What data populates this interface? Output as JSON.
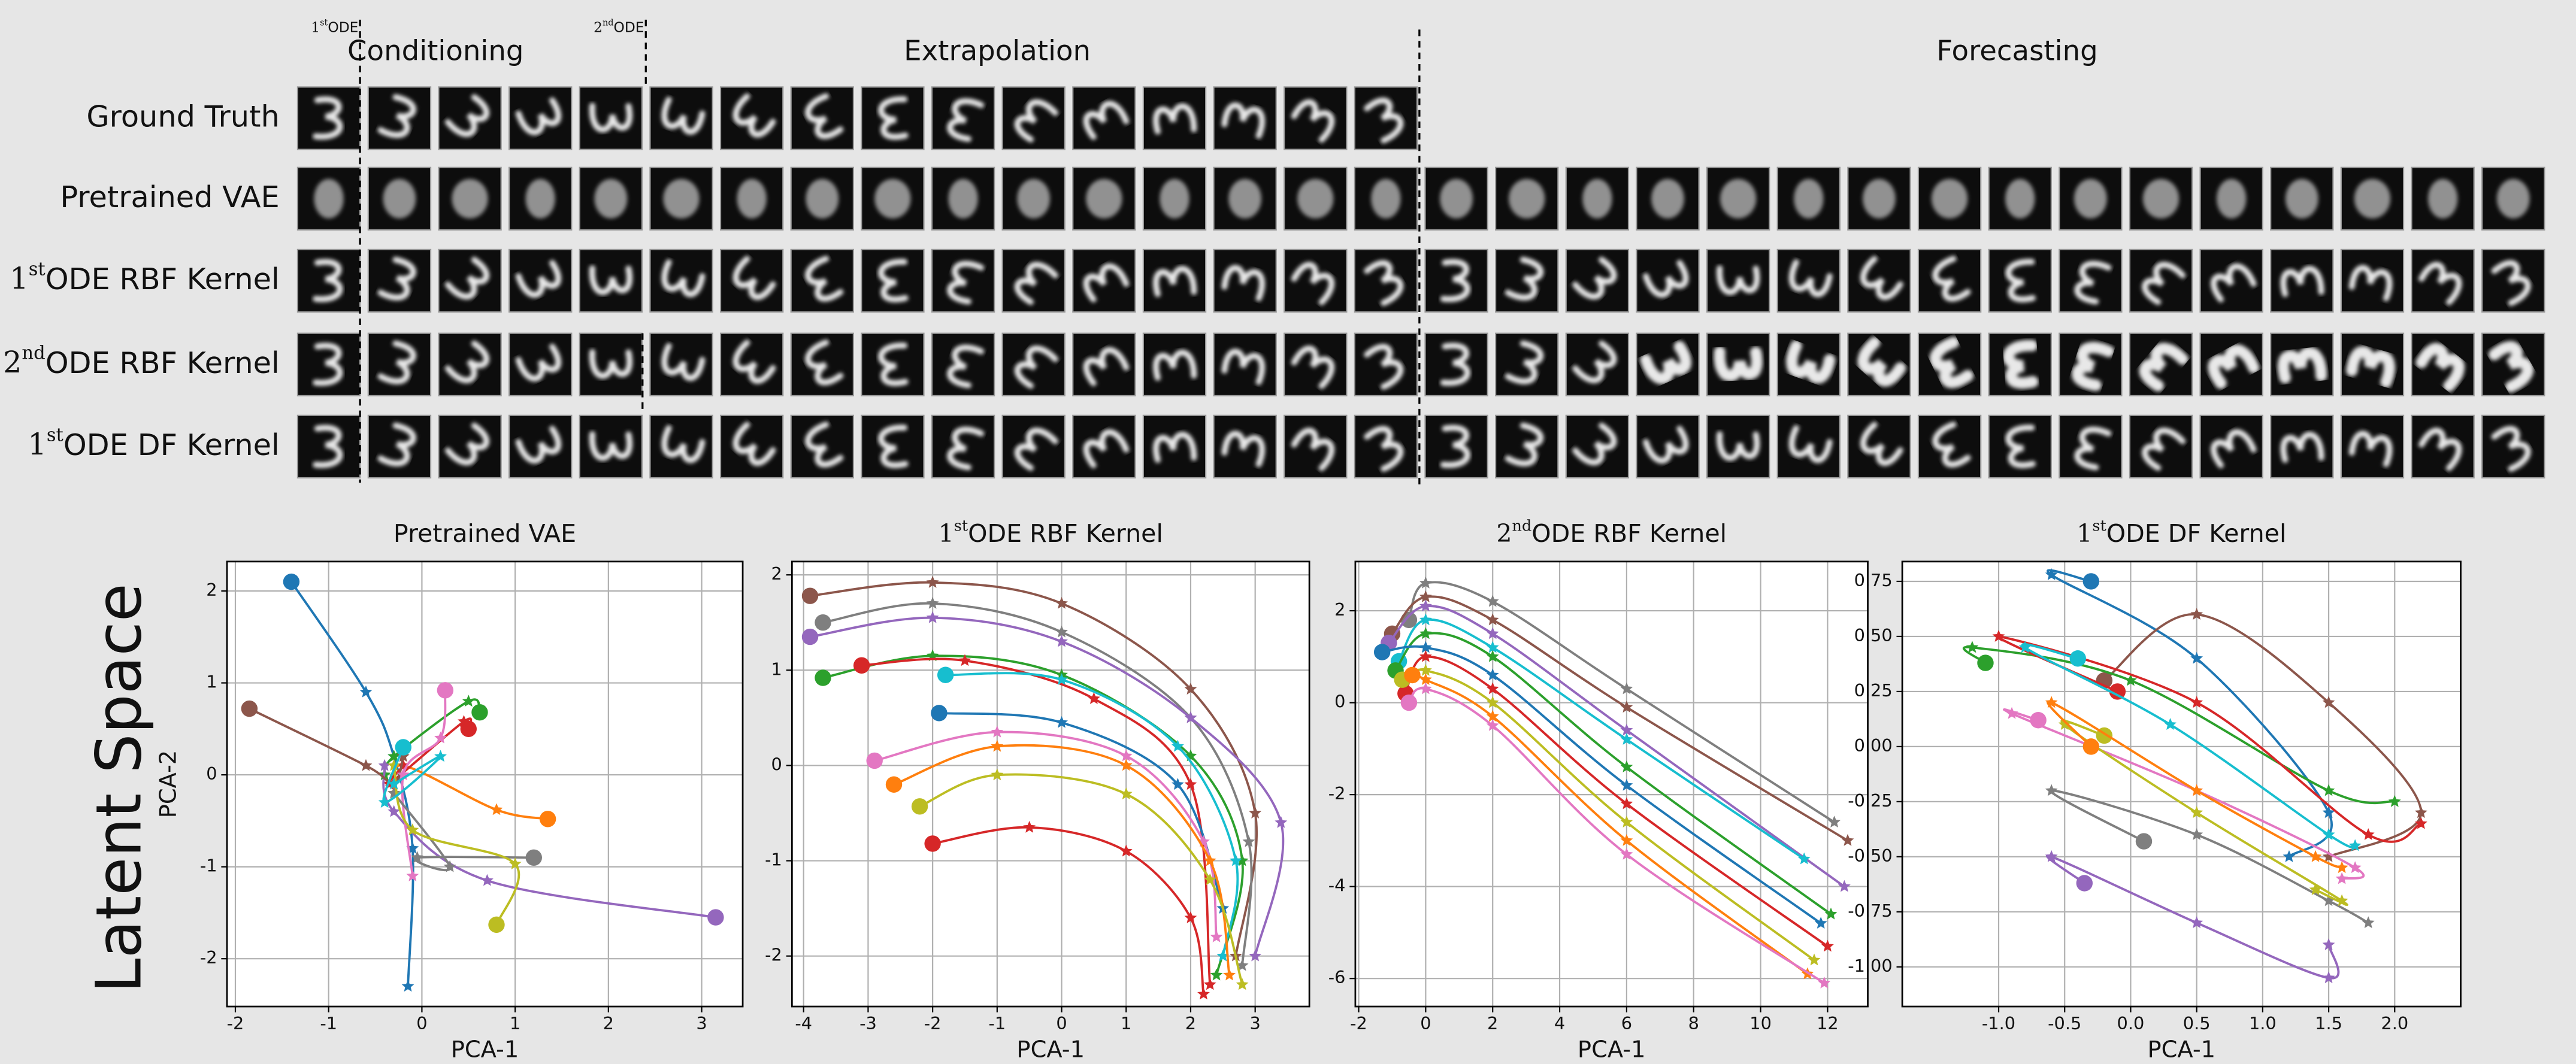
{
  "header": {
    "phases": [
      "Conditioning",
      "Extrapolation",
      "Forecasting"
    ],
    "markers": [
      {
        "base": "1",
        "sup": "st",
        "text": "ODE"
      },
      {
        "base": "2",
        "sup": "nd",
        "text": "ODE"
      }
    ]
  },
  "rows": [
    {
      "text": "Ground Truth"
    },
    {
      "text": "Pretrained VAE"
    },
    {
      "base": "1",
      "sup": "st",
      "text": "ODE RBF Kernel"
    },
    {
      "base": "2",
      "sup": "nd",
      "text": "ODE RBF Kernel"
    },
    {
      "base": "1",
      "sup": "st",
      "text": "ODE DF Kernel"
    }
  ],
  "side_label": "Latent Space",
  "chart_data": [
    {
      "type": "line",
      "title": {
        "text": "Pretrained VAE"
      },
      "xlabel": "PCA-1",
      "ylabel": "PCA-2",
      "grid": true,
      "xlim": [
        -2.09,
        3.44
      ],
      "ylim": [
        -2.52,
        2.32
      ],
      "xticks": [
        -2,
        -1,
        0,
        1,
        2,
        3
      ],
      "yticks": [
        -2,
        -1,
        0,
        1,
        2
      ],
      "series": [
        {
          "color": "#1f77b4",
          "x": [
            -1.4,
            -0.6,
            -0.3,
            -0.1,
            -0.15
          ],
          "values": [
            2.1,
            0.9,
            0.2,
            -0.8,
            -2.3
          ]
        },
        {
          "color": "#ff7f0e",
          "x": [
            1.35,
            0.8,
            -0.2,
            -0.3
          ],
          "values": [
            -0.48,
            -0.38,
            0.1,
            -0.2
          ]
        },
        {
          "color": "#2ca02c",
          "x": [
            0.62,
            0.5,
            -0.3,
            -0.4
          ],
          "values": [
            0.68,
            0.8,
            0.2,
            0.0
          ]
        },
        {
          "color": "#d62728",
          "x": [
            0.5,
            0.45,
            -0.35,
            -0.2
          ],
          "values": [
            0.5,
            0.58,
            -0.1,
            0.1
          ]
        },
        {
          "color": "#9467bd",
          "x": [
            3.15,
            0.7,
            -0.3,
            -0.4
          ],
          "values": [
            -1.55,
            -1.15,
            -0.4,
            0.1
          ]
        },
        {
          "color": "#8c564b",
          "x": [
            -1.85,
            -0.6,
            -0.3,
            -0.2
          ],
          "values": [
            0.72,
            0.1,
            -0.1,
            0.2
          ]
        },
        {
          "color": "#e377c2",
          "x": [
            0.25,
            0.2,
            -0.2,
            -0.1
          ],
          "values": [
            0.92,
            0.4,
            0.0,
            -1.1
          ]
        },
        {
          "color": "#7f7f7f",
          "x": [
            1.2,
            -0.05,
            0.3,
            -0.3
          ],
          "values": [
            -0.9,
            -0.9,
            -1.0,
            -0.2
          ]
        },
        {
          "color": "#bcbd22",
          "x": [
            0.8,
            1.0,
            -0.1,
            -0.3
          ],
          "values": [
            -1.63,
            -0.97,
            -0.6,
            0.1
          ]
        },
        {
          "color": "#17becf",
          "x": [
            -0.2,
            -0.4,
            0.2,
            -0.3
          ],
          "values": [
            0.3,
            -0.3,
            0.2,
            -0.1
          ]
        }
      ]
    },
    {
      "type": "line",
      "title": {
        "base": "1",
        "sup": "st",
        "text": "ODE RBF Kernel"
      },
      "xlabel": "PCA-1",
      "grid": true,
      "xlim": [
        -4.18,
        3.84
      ],
      "ylim": [
        -2.53,
        2.14
      ],
      "xticks": [
        -4,
        -3,
        -2,
        -1,
        0,
        1,
        2,
        3
      ],
      "yticks": [
        -2,
        -1,
        0,
        1,
        2
      ],
      "series": [
        {
          "color": "#8c564b",
          "x": [
            -3.9,
            -2,
            0,
            2,
            3,
            2.7
          ],
          "values": [
            1.78,
            1.92,
            1.7,
            0.8,
            -0.5,
            -2.0
          ]
        },
        {
          "color": "#7f7f7f",
          "x": [
            -3.7,
            -2,
            0,
            2,
            2.9,
            2.8
          ],
          "values": [
            1.5,
            1.7,
            1.4,
            0.5,
            -0.8,
            -2.1
          ]
        },
        {
          "color": "#9467bd",
          "x": [
            -3.9,
            -2,
            0,
            2,
            3.4,
            3
          ],
          "values": [
            1.35,
            1.55,
            1.3,
            0.5,
            -0.6,
            -2.0
          ]
        },
        {
          "color": "#2ca02c",
          "x": [
            -3.7,
            -2,
            0,
            2,
            2.8,
            2.4
          ],
          "values": [
            0.92,
            1.15,
            0.95,
            0.1,
            -1.0,
            -2.2
          ]
        },
        {
          "color": "#d62728",
          "x": [
            -3.1,
            -1.5,
            0.5,
            2,
            2.3
          ],
          "values": [
            1.05,
            1.1,
            0.7,
            -0.2,
            -2.3
          ]
        },
        {
          "color": "#17becf",
          "x": [
            -1.8,
            0,
            1.8,
            2.7,
            2.5
          ],
          "values": [
            0.95,
            0.9,
            0.2,
            -1.0,
            -2.0
          ]
        },
        {
          "color": "#1f77b4",
          "x": [
            -1.9,
            0,
            1.8,
            2.5
          ],
          "values": [
            0.55,
            0.45,
            -0.2,
            -1.5
          ]
        },
        {
          "color": "#e377c2",
          "x": [
            -2.9,
            -1,
            1,
            2.2,
            2.4
          ],
          "values": [
            0.05,
            0.35,
            0.1,
            -0.8,
            -1.8
          ]
        },
        {
          "color": "#ff7f0e",
          "x": [
            -2.6,
            -1,
            1,
            2.3,
            2.6
          ],
          "values": [
            -0.2,
            0.2,
            0.0,
            -1.0,
            -2.2
          ]
        },
        {
          "color": "#bcbd22",
          "x": [
            -2.2,
            -1,
            1,
            2.3,
            2.8
          ],
          "values": [
            -0.43,
            -0.1,
            -0.3,
            -1.2,
            -2.3
          ]
        },
        {
          "color": "#d62728",
          "x": [
            -2,
            -0.5,
            1,
            2,
            2.2
          ],
          "values": [
            -0.82,
            -0.65,
            -0.9,
            -1.6,
            -2.4
          ]
        }
      ]
    },
    {
      "type": "line",
      "title": {
        "base": "2",
        "sup": "nd",
        "text": "ODE RBF Kernel"
      },
      "xlabel": "PCA-1",
      "grid": true,
      "xlim": [
        -2.1,
        13.2
      ],
      "ylim": [
        -6.61,
        3.07
      ],
      "xticks": [
        -2,
        0,
        2,
        4,
        6,
        8,
        10,
        12
      ],
      "yticks": [
        -6,
        -4,
        -2,
        0,
        2
      ],
      "series": [
        {
          "color": "#7f7f7f",
          "x": [
            -0.5,
            0,
            2,
            6,
            12.2
          ],
          "values": [
            1.8,
            2.6,
            2.2,
            0.3,
            -2.6
          ]
        },
        {
          "color": "#8c564b",
          "x": [
            -1,
            0,
            2,
            6,
            12.6
          ],
          "values": [
            1.5,
            2.3,
            1.8,
            -0.1,
            -3.0
          ]
        },
        {
          "color": "#9467bd",
          "x": [
            -1.1,
            0,
            2,
            6,
            12.5
          ],
          "values": [
            1.3,
            2.1,
            1.5,
            -0.6,
            -4.0
          ]
        },
        {
          "color": "#17becf",
          "x": [
            -0.8,
            0,
            2,
            6,
            11.3
          ],
          "values": [
            0.9,
            1.8,
            1.2,
            -0.8,
            -3.4
          ]
        },
        {
          "color": "#2ca02c",
          "x": [
            -0.9,
            0,
            2,
            6,
            12.1
          ],
          "values": [
            0.7,
            1.5,
            1.0,
            -1.4,
            -4.6
          ]
        },
        {
          "color": "#1f77b4",
          "x": [
            -1.3,
            0,
            2,
            6,
            11.8
          ],
          "values": [
            1.1,
            1.2,
            0.6,
            -1.8,
            -4.8
          ]
        },
        {
          "color": "#d62728",
          "x": [
            -0.6,
            0,
            2,
            6,
            12
          ],
          "values": [
            0.2,
            1.0,
            0.3,
            -2.2,
            -5.3
          ]
        },
        {
          "color": "#bcbd22",
          "x": [
            -0.7,
            0,
            2,
            6,
            11.6
          ],
          "values": [
            0.5,
            0.7,
            0.0,
            -2.6,
            -5.6
          ]
        },
        {
          "color": "#ff7f0e",
          "x": [
            -0.4,
            0,
            2,
            6,
            11.4
          ],
          "values": [
            0.6,
            0.5,
            -0.3,
            -3.0,
            -5.9
          ]
        },
        {
          "color": "#e377c2",
          "x": [
            -0.5,
            0,
            2,
            6,
            11.9
          ],
          "values": [
            0,
            0.3,
            -0.5,
            -3.3,
            -6.1
          ]
        }
      ]
    },
    {
      "type": "line",
      "title": {
        "base": "1",
        "sup": "st",
        "text": "ODE DF Kernel"
      },
      "xlabel": "PCA-1",
      "grid": true,
      "xlim": [
        -1.73,
        2.5
      ],
      "ylim": [
        -1.18,
        0.84
      ],
      "xticks": [
        {
          "value": -1.0,
          "label": "-1.0"
        },
        -0.5,
        {
          "value": 0.0,
          "label": "0.0"
        },
        0.5,
        {
          "value": 1.0,
          "label": "1.0"
        },
        1.5,
        {
          "value": 2.0,
          "label": "2.0"
        }
      ],
      "yticks": [
        {
          "value": -1.0,
          "label": "-1.00"
        },
        -0.75,
        {
          "value": -0.5,
          "label": "-0.50"
        },
        -0.25,
        {
          "value": 0.0,
          "label": "0.00"
        },
        0.25,
        {
          "value": 0.5,
          "label": "0.50"
        },
        0.75
      ],
      "series": [
        {
          "color": "#1f77b4",
          "x": [
            -0.3,
            -0.6,
            0.5,
            1.5,
            1.2
          ],
          "values": [
            0.75,
            0.78,
            0.4,
            -0.3,
            -0.5
          ]
        },
        {
          "color": "#8c564b",
          "x": [
            -0.2,
            0.5,
            1.5,
            2.2,
            1.5
          ],
          "values": [
            0.3,
            0.6,
            0.2,
            -0.3,
            -0.5
          ]
        },
        {
          "color": "#7f7f7f",
          "x": [
            0.1,
            -0.6,
            0.5,
            1.5,
            1.8
          ],
          "values": [
            -0.43,
            -0.2,
            -0.4,
            -0.7,
            -0.8
          ]
        },
        {
          "color": "#9467bd",
          "x": [
            -0.35,
            -0.6,
            0.5,
            1.5,
            1.5
          ],
          "values": [
            -0.62,
            -0.5,
            -0.8,
            -1.05,
            -0.9
          ]
        },
        {
          "color": "#2ca02c",
          "x": [
            -1.1,
            -1.2,
            0,
            1.5,
            2.0
          ],
          "values": [
            0.38,
            0.45,
            0.3,
            -0.2,
            -0.25
          ]
        },
        {
          "color": "#d62728",
          "x": [
            -0.1,
            -1,
            0.5,
            1.8,
            2.2
          ],
          "values": [
            0.25,
            0.5,
            0.2,
            -0.4,
            -0.35
          ]
        },
        {
          "color": "#e377c2",
          "x": [
            -0.7,
            -0.9,
            0.5,
            1.7,
            1.6
          ],
          "values": [
            0.12,
            0.15,
            -0.2,
            -0.55,
            -0.6
          ]
        },
        {
          "color": "#bcbd22",
          "x": [
            -0.2,
            -0.5,
            0.5,
            1.6,
            1.4
          ],
          "values": [
            0.05,
            0.1,
            -0.3,
            -0.7,
            -0.65
          ]
        },
        {
          "color": "#17becf",
          "x": [
            -0.4,
            -0.8,
            0.3,
            1.5,
            1.7
          ],
          "values": [
            0.4,
            0.45,
            0.1,
            -0.4,
            -0.45
          ]
        },
        {
          "color": "#ff7f0e",
          "x": [
            -0.3,
            -0.6,
            0.5,
            1.4,
            1.6
          ],
          "values": [
            0.0,
            0.2,
            -0.2,
            -0.5,
            -0.55
          ]
        }
      ]
    }
  ]
}
